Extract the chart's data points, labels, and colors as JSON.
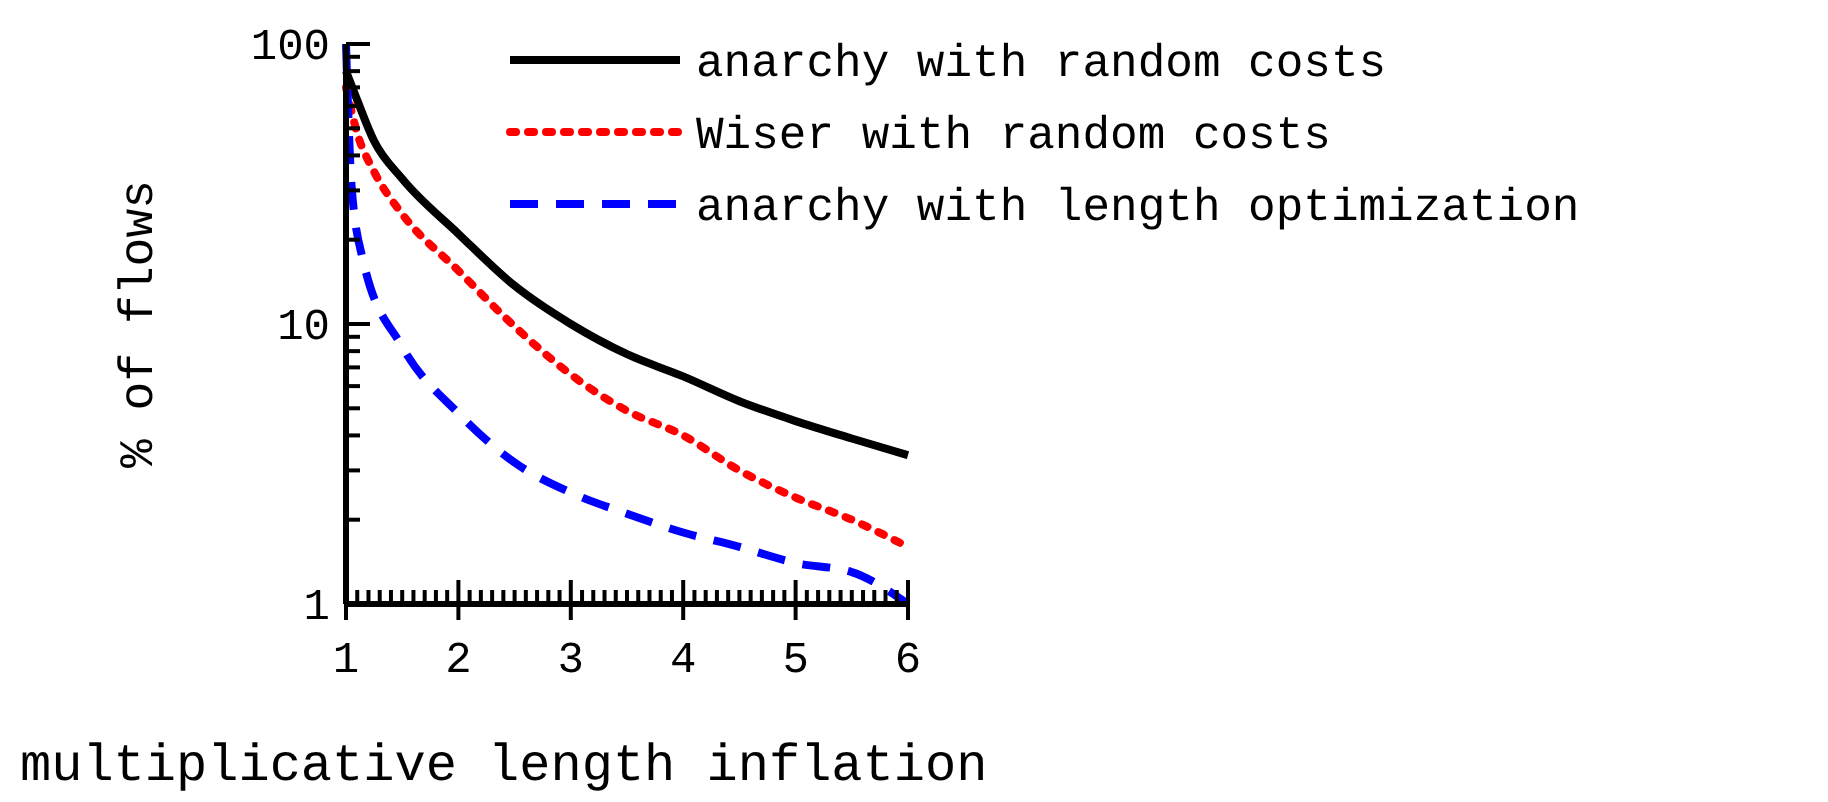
{
  "chart_data": {
    "type": "line",
    "xlabel": "multiplicative length inflation",
    "ylabel": "% of flows",
    "log": "y",
    "legend": "top right",
    "grid": false,
    "xlim": [
      1,
      6
    ],
    "ylim": [
      1,
      100
    ],
    "xticks": [
      1,
      {
        "value": 1.1,
        "label": null
      },
      {
        "value": 1.2,
        "label": null
      },
      {
        "value": 1.3,
        "label": null
      },
      {
        "value": 1.4,
        "label": null
      },
      {
        "value": 1.5,
        "label": null
      },
      {
        "value": 1.6,
        "label": null
      },
      {
        "value": 1.7,
        "label": null
      },
      {
        "value": 1.8,
        "label": null
      },
      {
        "value": 1.9,
        "label": null
      },
      2,
      {
        "value": 2.1,
        "label": null
      },
      {
        "value": 2.2,
        "label": null
      },
      {
        "value": 2.3,
        "label": null
      },
      {
        "value": 2.4,
        "label": null
      },
      {
        "value": 2.5,
        "label": null
      },
      {
        "value": 2.6,
        "label": null
      },
      {
        "value": 2.7,
        "label": null
      },
      {
        "value": 2.8,
        "label": null
      },
      {
        "value": 2.9,
        "label": null
      },
      3,
      {
        "value": 3.1,
        "label": null
      },
      {
        "value": 3.2,
        "label": null
      },
      {
        "value": 3.3,
        "label": null
      },
      {
        "value": 3.4,
        "label": null
      },
      {
        "value": 3.5,
        "label": null
      },
      {
        "value": 3.6,
        "label": null
      },
      {
        "value": 3.7,
        "label": null
      },
      {
        "value": 3.8,
        "label": null
      },
      {
        "value": 3.9,
        "label": null
      },
      4,
      {
        "value": 4.1,
        "label": null
      },
      {
        "value": 4.2,
        "label": null
      },
      {
        "value": 4.3,
        "label": null
      },
      {
        "value": 4.4,
        "label": null
      },
      {
        "value": 4.5,
        "label": null
      },
      {
        "value": 4.6,
        "label": null
      },
      {
        "value": 4.7,
        "label": null
      },
      {
        "value": 4.8,
        "label": null
      },
      {
        "value": 4.9,
        "label": null
      },
      5,
      {
        "value": 5.1,
        "label": null
      },
      {
        "value": 5.2,
        "label": null
      },
      {
        "value": 5.3,
        "label": null
      },
      {
        "value": 5.4,
        "label": null
      },
      {
        "value": 5.5,
        "label": null
      },
      {
        "value": 5.6,
        "label": null
      },
      {
        "value": 5.7,
        "label": null
      },
      {
        "value": 5.8,
        "label": null
      },
      {
        "value": 5.9,
        "label": null
      },
      6
    ],
    "yticks": [
      1,
      {
        "value": 2,
        "label": null
      },
      {
        "value": 3,
        "label": null
      },
      {
        "value": 4,
        "label": null
      },
      {
        "value": 5,
        "label": null
      },
      {
        "value": 6,
        "label": null
      },
      {
        "value": 7,
        "label": null
      },
      {
        "value": 8,
        "label": null
      },
      {
        "value": 9,
        "label": null
      },
      10,
      {
        "value": 20,
        "label": null
      },
      {
        "value": 30,
        "label": null
      },
      {
        "value": 40,
        "label": null
      },
      {
        "value": 50,
        "label": null
      },
      {
        "value": 60,
        "label": null
      },
      {
        "value": 70,
        "label": null
      },
      {
        "value": 80,
        "label": null
      },
      {
        "value": 90,
        "label": null
      },
      100
    ],
    "marker": "none",
    "series": [
      {
        "name": "anarchy with random costs",
        "color": "#000000",
        "line_style": "solid",
        "x": [
          1,
          1.1,
          1.25,
          1.5,
          2,
          2.5,
          3,
          3.5,
          4,
          4.5,
          5,
          5.5,
          6
        ],
        "values": [
          80,
          63,
          45,
          33,
          21,
          13.7,
          10,
          7.8,
          6.5,
          5.3,
          4.5,
          3.9,
          3.4
        ]
      },
      {
        "name": "Wiser with random costs",
        "color": "#ff0000",
        "line_style": "dotted",
        "x": [
          1,
          1.1,
          1.25,
          1.5,
          2,
          2.5,
          3,
          3.5,
          4,
          4.5,
          5,
          5.5,
          6
        ],
        "values": [
          70,
          48,
          35,
          24.7,
          15.5,
          9.8,
          6.6,
          4.9,
          4,
          3,
          2.4,
          2,
          1.6
        ]
      },
      {
        "name": "anarchy with length optimization",
        "color": "#0000ff",
        "line_style": "dashed",
        "x": [
          1,
          1.05,
          1.15,
          1.5,
          2,
          2.5,
          3,
          3.5,
          4,
          4.5,
          5,
          5.5,
          6
        ],
        "values": [
          100,
          31,
          17,
          8.3,
          4.8,
          3.2,
          2.5,
          2.1,
          1.8,
          1.6,
          1.4,
          1.3,
          1
        ]
      }
    ]
  }
}
